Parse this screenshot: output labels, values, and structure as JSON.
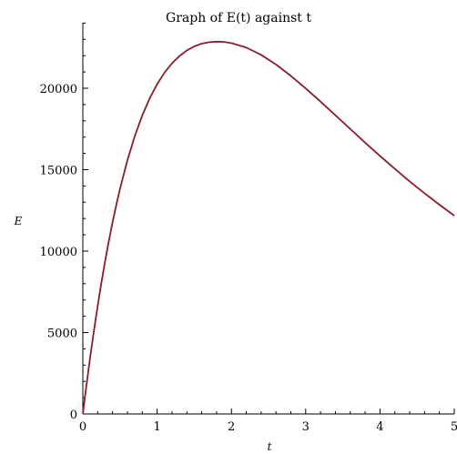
{
  "chart_data": {
    "type": "line",
    "title": "Graph of E(t) against t",
    "xlabel": "t",
    "ylabel": "E",
    "xlim": [
      0,
      5
    ],
    "ylim": [
      0,
      24000
    ],
    "x_ticks": [
      0,
      1,
      2,
      3,
      4,
      5
    ],
    "x_tick_labels": [
      "0",
      "1",
      "2",
      "3",
      "4",
      "5"
    ],
    "y_ticks": [
      0,
      5000,
      10000,
      15000,
      20000
    ],
    "y_tick_labels": [
      "0",
      "5000",
      "10000",
      "15000",
      "20000"
    ],
    "grid": false,
    "series": [
      {
        "color": "#8b1c2c",
        "x": [
          0,
          0.05,
          0.1,
          0.15,
          0.2,
          0.25,
          0.3,
          0.35,
          0.4,
          0.45,
          0.5,
          0.6,
          0.7,
          0.8,
          0.9,
          1.0,
          1.1,
          1.2,
          1.3,
          1.4,
          1.5,
          1.6,
          1.7,
          1.8,
          1.9,
          2.0,
          2.2,
          2.4,
          2.6,
          2.8,
          3.0,
          3.2,
          3.4,
          3.6,
          3.8,
          4.0,
          4.2,
          4.4,
          4.6,
          4.8,
          5.0
        ],
        "y": [
          0,
          1820,
          3530,
          5140,
          6650,
          8070,
          9390,
          10620,
          11770,
          12830,
          13820,
          15580,
          17070,
          18330,
          19380,
          20250,
          20960,
          21530,
          21980,
          22320,
          22570,
          22740,
          22830,
          22860,
          22840,
          22770,
          22500,
          22050,
          21460,
          20760,
          19990,
          19180,
          18340,
          17500,
          16660,
          15840,
          15050,
          14280,
          13550,
          12850,
          12180
        ]
      }
    ]
  }
}
